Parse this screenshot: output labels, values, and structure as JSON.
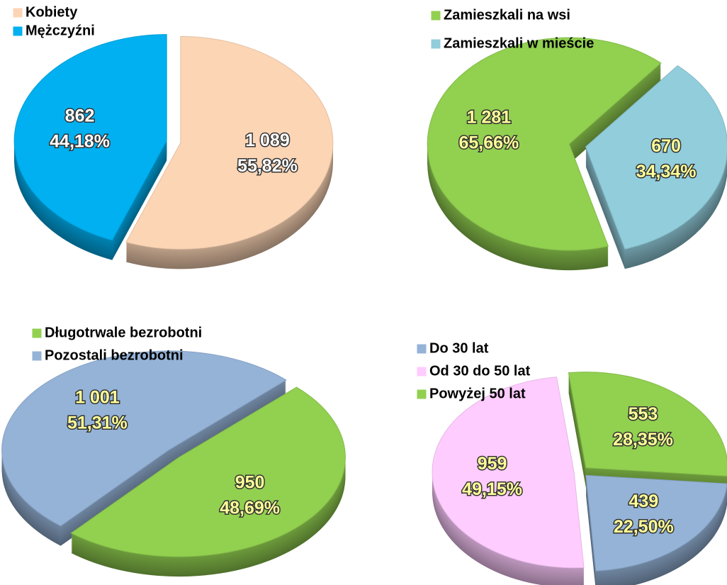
{
  "chart_data": [
    {
      "type": "pie",
      "categories": [
        "Kobiety",
        "Mężczyźni"
      ],
      "values": [
        1089,
        862
      ],
      "value_labels": [
        "1 089",
        "862"
      ],
      "percents": [
        55.82,
        44.18
      ],
      "percent_labels": [
        "55,82%",
        "44,18%"
      ],
      "colors": [
        "#fcd5b5",
        "#00b0f0"
      ],
      "label_color": "#ffffff"
    },
    {
      "type": "pie",
      "categories": [
        "Zamieszkali na wsi",
        "Zamieszkali w mieście"
      ],
      "values": [
        1281,
        670
      ],
      "value_labels": [
        "1 281",
        "670"
      ],
      "percents": [
        65.66,
        34.34
      ],
      "percent_labels": [
        "65,66%",
        "34,34%"
      ],
      "colors": [
        "#92d050",
        "#92cddc"
      ],
      "label_color": "#ffff99"
    },
    {
      "type": "pie",
      "categories": [
        "Długotrwale bezrobotni",
        "Pozostali bezrobotni"
      ],
      "values": [
        950,
        1001
      ],
      "value_labels": [
        "950",
        "1 001"
      ],
      "percents": [
        48.69,
        51.31
      ],
      "percent_labels": [
        "48,69%",
        "51,31%"
      ],
      "colors": [
        "#92d050",
        "#95b3d7"
      ],
      "label_color": "#ffff99"
    },
    {
      "type": "pie",
      "categories": [
        "Do 30 lat",
        "Od 30 do 50 lat",
        "Powyżej 50 lat"
      ],
      "values": [
        439,
        959,
        553
      ],
      "value_labels": [
        "439",
        "959",
        "553"
      ],
      "percents": [
        22.5,
        49.15,
        28.35
      ],
      "percent_labels": [
        "22,50%",
        "49,15%",
        "28,35%"
      ],
      "colors": [
        "#95b3d7",
        "#ffccff",
        "#92d050"
      ],
      "label_color": "#ffff99"
    }
  ]
}
